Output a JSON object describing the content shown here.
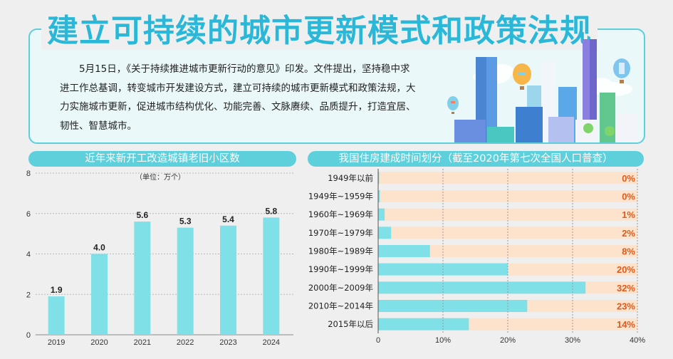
{
  "header": {
    "title": "建立可持续的城市更新模式和政策法规",
    "intro": "5月15日，《关于持续推进城市更新行动的意见》印发。文件提出，坚持稳中求进工作总基调，转变城市开发建设方式，建立可持续的城市更新模式和政策法规，大力实施城市更新，促进城市结构优化、功能完善、文脉赓续、品质提升，打造宜居、韧性、智慧城市。"
  },
  "chart_data": [
    {
      "type": "bar",
      "title": "近年来新开工改造城镇老旧小区数",
      "subtitle": "（单位：万个）",
      "categories": [
        "2019",
        "2020",
        "2021",
        "2022",
        "2023",
        "2024"
      ],
      "values": [
        1.9,
        4.0,
        5.6,
        5.3,
        5.4,
        5.8
      ],
      "value_labels": [
        "1.9",
        "4.0",
        "5.6",
        "5.3",
        "5.4",
        "5.8"
      ],
      "yticks": [
        "0",
        "2",
        "4",
        "6",
        "8"
      ],
      "ylim": [
        0,
        8
      ],
      "grid": true,
      "bar_color": "#7fe0e8"
    },
    {
      "type": "bar",
      "orientation": "horizontal",
      "title": "我国住房建成时间划分（截至2020年第七次全国人口普查）",
      "categories": [
        "1949年以前",
        "1949年~1959年",
        "1960年~1969年",
        "1970年~1979年",
        "1980年~1989年",
        "1990年~1999年",
        "2000年~2009年",
        "2010年~2014年",
        "2015年以后"
      ],
      "values": [
        0.15,
        0.25,
        1,
        2,
        8,
        20,
        32,
        23,
        14
      ],
      "value_labels": [
        "0%",
        "0%",
        "1%",
        "2%",
        "8%",
        "20%",
        "32%",
        "23%",
        "14%"
      ],
      "xticks": [
        "0",
        "10%",
        "20%",
        "30%",
        "40%"
      ],
      "xlim": [
        0,
        40
      ],
      "grid": true,
      "bar_color": "#7fe0e8",
      "track_color": "#fde3cc",
      "label_color": "#e05a1c"
    }
  ]
}
